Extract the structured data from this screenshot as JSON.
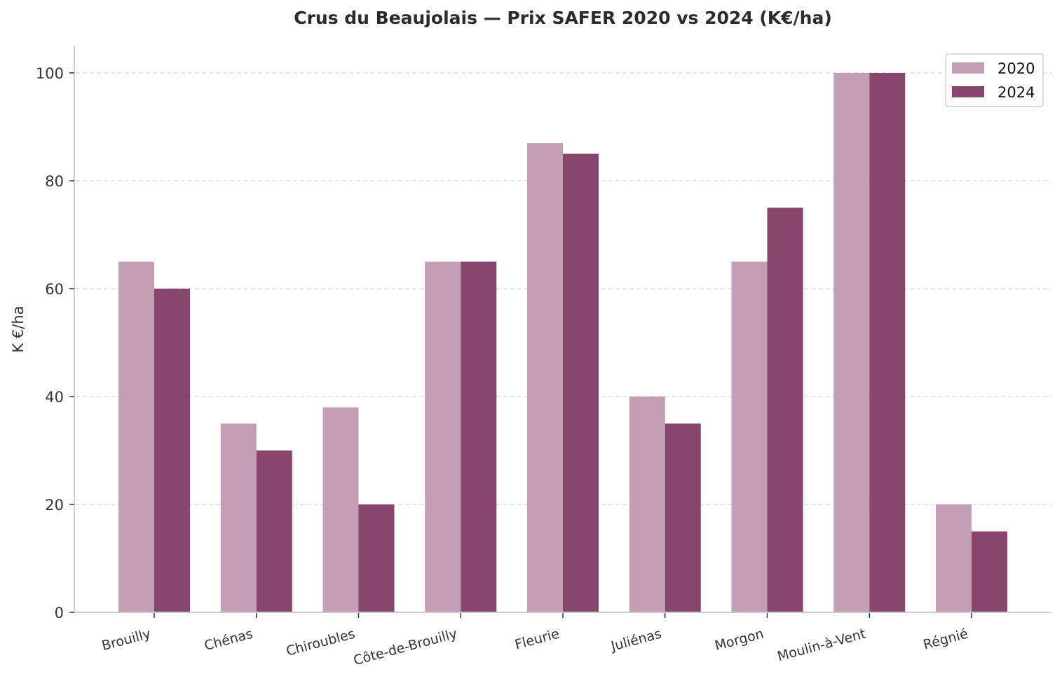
{
  "chart_data": {
    "type": "bar",
    "title": "Crus du Beaujolais — Prix SAFER 2020 vs 2024 (K€/ha)",
    "xlabel": "",
    "ylabel": "K €/ha",
    "categories": [
      "Brouilly",
      "Chénas",
      "Chiroubles",
      "Côte-de-Brouilly",
      "Fleurie",
      "Juliénas",
      "Morgon",
      "Moulin-à-Vent",
      "Régnié"
    ],
    "series": [
      {
        "name": "2020",
        "color": "#c39fb5",
        "values": [
          65,
          35,
          38,
          65,
          87,
          40,
          65,
          100,
          20
        ]
      },
      {
        "name": "2024",
        "color": "#88466d",
        "values": [
          60,
          30,
          20,
          65,
          85,
          35,
          75,
          100,
          15
        ]
      }
    ],
    "ylim": [
      0,
      105
    ],
    "yticks": [
      0,
      20,
      40,
      60,
      80,
      100
    ],
    "grid": {
      "y": true,
      "style": "dashed",
      "color": "#dddddd"
    },
    "legend": {
      "position": "upper right",
      "entries": [
        "2020",
        "2024"
      ]
    },
    "xtick_rotation": -15
  }
}
